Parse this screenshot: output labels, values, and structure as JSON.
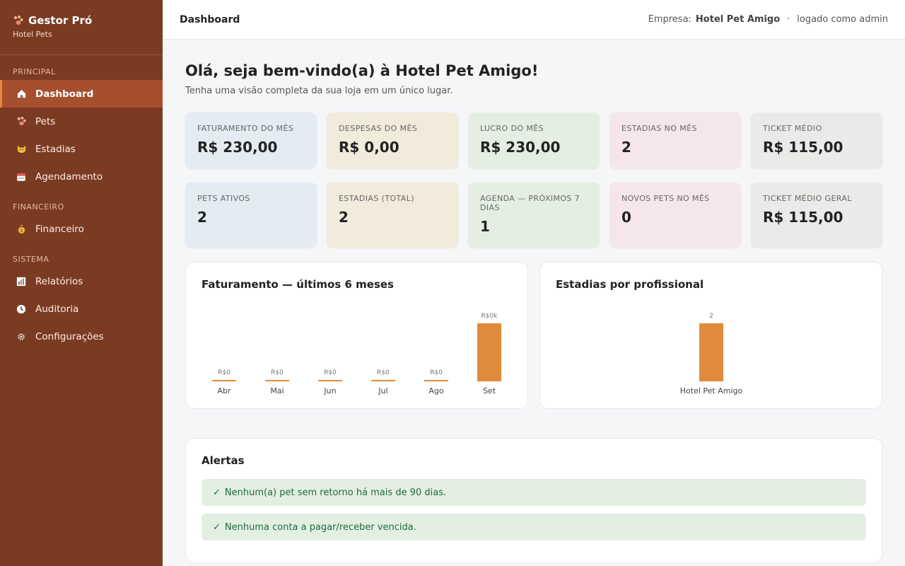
{
  "sidebar": {
    "brand_title": "Gestor Pró",
    "brand_subtitle": "Hotel Pets",
    "brand_icon": "paw-icon",
    "sections": [
      {
        "label": "PRINCIPAL",
        "items": [
          {
            "label": "Dashboard",
            "icon": "home-icon",
            "active": true
          },
          {
            "label": "Pets",
            "icon": "paw-icon"
          },
          {
            "label": "Estadias",
            "icon": "pet-face-icon"
          },
          {
            "label": "Agendamento",
            "icon": "calendar-icon"
          }
        ]
      },
      {
        "label": "FINANCEIRO",
        "items": [
          {
            "label": "Financeiro",
            "icon": "money-bag-icon"
          }
        ]
      },
      {
        "label": "SISTEMA",
        "items": [
          {
            "label": "Relatórios",
            "icon": "bar-chart-icon"
          },
          {
            "label": "Auditoria",
            "icon": "clock-icon"
          },
          {
            "label": "Configurações",
            "icon": "gear-icon"
          }
        ]
      }
    ]
  },
  "topbar": {
    "title": "Dashboard",
    "company_label": "Empresa:",
    "company_name": "Hotel Pet Amigo",
    "separator": "·",
    "logged_as": "logado como admin"
  },
  "welcome": {
    "title": "Olá, seja bem-vindo(a) à Hotel Pet Amigo!",
    "subtitle": "Tenha uma visão completa da sua loja em um único lugar."
  },
  "cards_row1": [
    {
      "label": "FATURAMENTO DO MÊS",
      "value": "R$ 230,00",
      "color": "#e4ebf3"
    },
    {
      "label": "DESPESAS DO MÊS",
      "value": "R$ 0,00",
      "color": "#f2eadb"
    },
    {
      "label": "LUCRO DO MÊS",
      "value": "R$ 230,00",
      "color": "#e5eee2"
    },
    {
      "label": "ESTADIAS NO MÊS",
      "value": "2",
      "color": "#f5e6e9"
    },
    {
      "label": "TICKET MÉDIO",
      "value": "R$ 115,00",
      "color": "#eceae8"
    }
  ],
  "cards_row2": [
    {
      "label": "PETS ATIVOS",
      "value": "2",
      "color": "#e4ebf3"
    },
    {
      "label": "ESTADIAS (TOTAL)",
      "value": "2",
      "color": "#f2eadb"
    },
    {
      "label": "AGENDA — PRÓXIMOS 7 DIAS",
      "value": "1",
      "color": "#e5eee2"
    },
    {
      "label": "NOVOS PETS NO MÊS",
      "value": "0",
      "color": "#f5e6e9"
    },
    {
      "label": "TICKET MÉDIO GERAL",
      "value": "R$ 115,00",
      "color": "#eceae8"
    }
  ],
  "chart_data": [
    {
      "type": "bar",
      "title": "Faturamento — últimos 6 meses",
      "categories": [
        "Abr",
        "Mai",
        "Jun",
        "Jul",
        "Ago",
        "Set"
      ],
      "values": [
        0,
        0,
        0,
        0,
        0,
        230
      ],
      "data_labels": [
        "R$0",
        "R$0",
        "R$0",
        "R$0",
        "R$0",
        "R$0k"
      ],
      "bar_color": "#e08a3c",
      "grid": false
    },
    {
      "type": "bar",
      "title": "Estadias por profissional",
      "categories": [
        "Hotel Pet Amigo"
      ],
      "values": [
        2
      ],
      "data_labels": [
        "2"
      ],
      "bar_color": "#e08a3c",
      "grid": false
    }
  ],
  "alerts": {
    "title": "Alertas",
    "items": [
      {
        "icon": "check-icon",
        "check": "✓",
        "text": "Nenhum(a) pet sem retorno há mais de 90 dias."
      },
      {
        "icon": "check-icon",
        "check": "✓",
        "text": "Nenhuma conta a pagar/receber vencida."
      }
    ]
  }
}
